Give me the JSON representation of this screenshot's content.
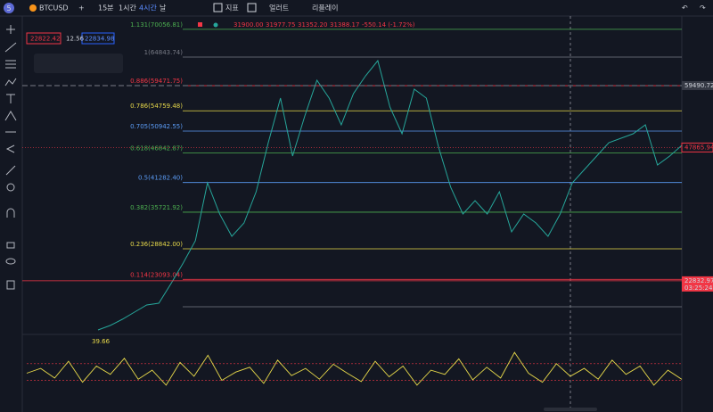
{
  "toolbar": {
    "avatar": "5",
    "symbol": "BTCUSD",
    "intervals": [
      "15분",
      "1시간",
      "4시간",
      "날"
    ],
    "active_interval": 2,
    "indicators": "지표",
    "alerts": "얼러트",
    "replay": "리플레이"
  },
  "ohlc": {
    "open": "31900.00",
    "high": "31977.75",
    "low": "31352.20",
    "close": "31388.17",
    "change": "-550.14 (-1.72%)"
  },
  "quote": {
    "bid": "22822.42",
    "spread": "12.56",
    "ask": "22834.98"
  },
  "chart_data": {
    "type": "line",
    "ylim": [
      13270,
      72547
    ],
    "color": "#26a69a",
    "fib_levels": [
      {
        "label": "1.131(70056.81)",
        "price": 70056.81,
        "color": "#4caf50"
      },
      {
        "label": "1(64843.74)",
        "price": 64843.74,
        "color": "#787b86"
      },
      {
        "label": "0.886(59471.75)",
        "price": 59471.75,
        "color": "#f23645"
      },
      {
        "label": "0.786(54759.48)",
        "price": 54759.48,
        "color": "#e6d84a"
      },
      {
        "label": "0.705(50942.55)",
        "price": 50942.55,
        "color": "#5b9cf6"
      },
      {
        "label": "0.618(46842.87)",
        "price": 46842.87,
        "color": "#4caf50"
      },
      {
        "label": "0.5(41282.40)",
        "price": 41282.4,
        "color": "#5b9cf6"
      },
      {
        "label": "0.382(35721.92)",
        "price": 35721.92,
        "color": "#4caf50"
      },
      {
        "label": "0.236(28842.00)",
        "price": 28842,
        "color": "#e6d84a"
      },
      {
        "label": "0.114(23093.04)",
        "price": 23093.04,
        "color": "#f23645"
      },
      {
        "price": 17960,
        "color": "#787b86"
      }
    ],
    "values": [
      13600,
      14440,
      15610,
      16950,
      18290,
      18630,
      22310,
      26160,
      30350,
      41230,
      35370,
      31190,
      33700,
      39560,
      48770,
      57140,
      46260,
      53790,
      60490,
      57140,
      52120,
      57980,
      61330,
      64170,
      55470,
      50440,
      58820,
      57140,
      47930,
      40400,
      35370,
      37890,
      35370,
      39560,
      32020,
      35370,
      33700,
      31190,
      35370,
      41230,
      43740,
      46260,
      48770,
      49610,
      50440,
      52120,
      44580,
      46260,
      48270
    ],
    "crosshair_price": 59490.72,
    "last_price": 47865.94,
    "current_price": 22832.97,
    "countdown": "03:25:24",
    "oscillator": {
      "label": "39.66",
      "ylim": [
        0,
        100
      ],
      "color": "#e6d84a",
      "levels": [
        66,
        38
      ],
      "values": [
        50,
        58,
        42,
        70,
        35,
        62,
        48,
        75,
        40,
        55,
        30,
        68,
        45,
        80,
        38,
        52,
        60,
        33,
        72,
        46,
        58,
        40,
        65,
        50,
        36,
        70,
        44,
        62,
        30,
        55,
        48,
        74,
        39,
        60,
        42,
        85,
        50,
        35,
        66,
        45,
        58,
        40,
        72,
        48,
        62,
        30,
        55,
        39.66
      ]
    }
  }
}
